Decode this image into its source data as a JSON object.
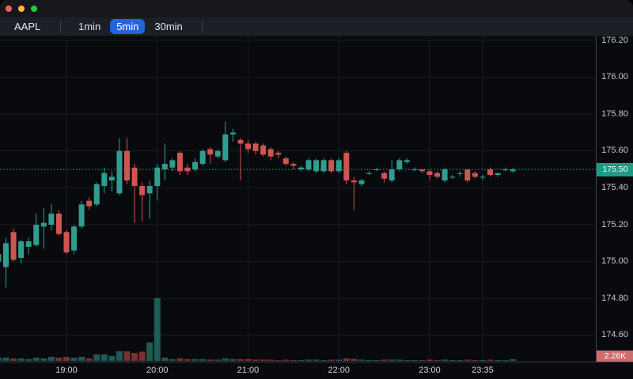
{
  "window": {
    "controls": [
      {
        "name": "close",
        "color": "#ff5f57"
      },
      {
        "name": "minimize",
        "color": "#febc2e"
      },
      {
        "name": "zoom",
        "color": "#28c840"
      }
    ]
  },
  "toolbar": {
    "symbol": "AAPL",
    "timeframes": [
      {
        "label": "1min",
        "active": false
      },
      {
        "label": "5min",
        "active": true
      },
      {
        "label": "30min",
        "active": false
      }
    ],
    "active_button_bg": "#2166d9"
  },
  "colors": {
    "up": "#2f9e8e",
    "down": "#cf5551",
    "grid": "#171b27",
    "background": "#090a0e",
    "price_line": "#2f9e8e",
    "last_price_badge_bg": "#1e9b84",
    "volume_badge_bg": "#ce6d6d"
  },
  "chart": {
    "last_price_label": "175.50",
    "volume_label": "2.26K"
  },
  "chart_data": {
    "type": "candlestick",
    "symbol": "AAPL",
    "interval": "5min",
    "y_ticks": [
      "176.20",
      "176.00",
      "175.80",
      "175.60",
      "175.40",
      "175.20",
      "175.00",
      "174.80",
      "174.60"
    ],
    "x_ticks": [
      "19:00",
      "20:00",
      "21:00",
      "22:00",
      "23:00",
      "23:35"
    ],
    "last_price": 175.5,
    "last_volume_label": "2.26K",
    "volume_unit": "K",
    "candles": [
      {
        "t": "18:15",
        "o": 175.0,
        "h": 175.05,
        "l": 174.96,
        "c": 175.04,
        "v": 4.5
      },
      {
        "t": "18:20",
        "o": 174.97,
        "h": 175.13,
        "l": 174.86,
        "c": 175.1,
        "v": 4.5
      },
      {
        "t": "18:25",
        "o": 175.16,
        "h": 175.18,
        "l": 175.0,
        "c": 175.01,
        "v": 3.4
      },
      {
        "t": "18:30",
        "o": 175.02,
        "h": 175.12,
        "l": 174.99,
        "c": 175.11,
        "v": 3.4
      },
      {
        "t": "18:35",
        "o": 175.08,
        "h": 175.13,
        "l": 175.04,
        "c": 175.11,
        "v": 2.3
      },
      {
        "t": "18:40",
        "o": 175.09,
        "h": 175.26,
        "l": 175.08,
        "c": 175.2,
        "v": 4.5
      },
      {
        "t": "18:45",
        "o": 175.19,
        "h": 175.29,
        "l": 175.07,
        "c": 175.21,
        "v": 3.4
      },
      {
        "t": "18:50",
        "o": 175.2,
        "h": 175.31,
        "l": 175.17,
        "c": 175.26,
        "v": 5.6
      },
      {
        "t": "18:55",
        "o": 175.26,
        "h": 175.28,
        "l": 175.14,
        "c": 175.15,
        "v": 4.5
      },
      {
        "t": "19:00",
        "o": 175.16,
        "h": 175.17,
        "l": 175.04,
        "c": 175.05,
        "v": 5.6
      },
      {
        "t": "19:05",
        "o": 175.06,
        "h": 175.2,
        "l": 175.04,
        "c": 175.19,
        "v": 4.5
      },
      {
        "t": "19:10",
        "o": 175.19,
        "h": 175.33,
        "l": 175.18,
        "c": 175.31,
        "v": 5.6
      },
      {
        "t": "19:15",
        "o": 175.33,
        "h": 175.35,
        "l": 175.28,
        "c": 175.3,
        "v": 3.4
      },
      {
        "t": "19:20",
        "o": 175.31,
        "h": 175.43,
        "l": 175.3,
        "c": 175.42,
        "v": 9
      },
      {
        "t": "19:25",
        "o": 175.41,
        "h": 175.51,
        "l": 175.37,
        "c": 175.48,
        "v": 9
      },
      {
        "t": "19:30",
        "o": 175.44,
        "h": 175.49,
        "l": 175.38,
        "c": 175.46,
        "v": 7
      },
      {
        "t": "19:35",
        "o": 175.37,
        "h": 175.67,
        "l": 175.36,
        "c": 175.6,
        "v": 13.5
      },
      {
        "t": "19:40",
        "o": 175.6,
        "h": 175.67,
        "l": 175.42,
        "c": 175.44,
        "v": 13.5
      },
      {
        "t": "19:45",
        "o": 175.51,
        "h": 175.53,
        "l": 175.21,
        "c": 175.41,
        "v": 11
      },
      {
        "t": "19:50",
        "o": 175.41,
        "h": 175.43,
        "l": 175.22,
        "c": 175.36,
        "v": 13
      },
      {
        "t": "19:55",
        "o": 175.37,
        "h": 175.44,
        "l": 175.23,
        "c": 175.41,
        "v": 26
      },
      {
        "t": "20:00",
        "o": 175.41,
        "h": 175.53,
        "l": 175.33,
        "c": 175.51,
        "v": 89
      },
      {
        "t": "20:05",
        "o": 175.5,
        "h": 175.64,
        "l": 175.44,
        "c": 175.53,
        "v": 4.5
      },
      {
        "t": "20:10",
        "o": 175.51,
        "h": 175.56,
        "l": 175.49,
        "c": 175.55,
        "v": 2.3
      },
      {
        "t": "20:15",
        "o": 175.59,
        "h": 175.6,
        "l": 175.47,
        "c": 175.49,
        "v": 3.4
      },
      {
        "t": "20:20",
        "o": 175.51,
        "h": 175.53,
        "l": 175.47,
        "c": 175.49,
        "v": 2.3
      },
      {
        "t": "20:25",
        "o": 175.5,
        "h": 175.56,
        "l": 175.49,
        "c": 175.54,
        "v": 2.3
      },
      {
        "t": "20:30",
        "o": 175.53,
        "h": 175.61,
        "l": 175.52,
        "c": 175.6,
        "v": 2.3
      },
      {
        "t": "20:35",
        "o": 175.61,
        "h": 175.62,
        "l": 175.53,
        "c": 175.58,
        "v": 1.7
      },
      {
        "t": "20:40",
        "o": 175.57,
        "h": 175.61,
        "l": 175.56,
        "c": 175.6,
        "v": 1.7
      },
      {
        "t": "20:45",
        "o": 175.55,
        "h": 175.76,
        "l": 175.54,
        "c": 175.69,
        "v": 3.4
      },
      {
        "t": "20:50",
        "o": 175.69,
        "h": 175.72,
        "l": 175.65,
        "c": 175.7,
        "v": 2.3
      },
      {
        "t": "20:55",
        "o": 175.66,
        "h": 175.67,
        "l": 175.44,
        "c": 175.64,
        "v": 2.3
      },
      {
        "t": "21:00",
        "o": 175.64,
        "h": 175.66,
        "l": 175.59,
        "c": 175.61,
        "v": 2.3
      },
      {
        "t": "21:05",
        "o": 175.64,
        "h": 175.65,
        "l": 175.58,
        "c": 175.6,
        "v": 1.7
      },
      {
        "t": "21:10",
        "o": 175.63,
        "h": 175.64,
        "l": 175.57,
        "c": 175.58,
        "v": 1.7
      },
      {
        "t": "21:15",
        "o": 175.61,
        "h": 175.62,
        "l": 175.55,
        "c": 175.57,
        "v": 1.7
      },
      {
        "t": "21:20",
        "o": 175.59,
        "h": 175.6,
        "l": 175.56,
        "c": 175.58,
        "v": 1.1
      },
      {
        "t": "21:25",
        "o": 175.56,
        "h": 175.57,
        "l": 175.52,
        "c": 175.53,
        "v": 1.7
      },
      {
        "t": "21:30",
        "o": 175.53,
        "h": 175.54,
        "l": 175.5,
        "c": 175.52,
        "v": 1.1
      },
      {
        "t": "21:35",
        "o": 175.5,
        "h": 175.52,
        "l": 175.49,
        "c": 175.51,
        "v": 1.1
      },
      {
        "t": "21:40",
        "o": 175.5,
        "h": 175.56,
        "l": 175.49,
        "c": 175.55,
        "v": 1.7
      },
      {
        "t": "21:45",
        "o": 175.49,
        "h": 175.56,
        "l": 175.48,
        "c": 175.55,
        "v": 1.7
      },
      {
        "t": "21:50",
        "o": 175.49,
        "h": 175.56,
        "l": 175.48,
        "c": 175.55,
        "v": 1.1
      },
      {
        "t": "21:55",
        "o": 175.55,
        "h": 175.56,
        "l": 175.48,
        "c": 175.49,
        "v": 1.7
      },
      {
        "t": "22:00",
        "o": 175.49,
        "h": 175.56,
        "l": 175.48,
        "c": 175.55,
        "v": 1.7
      },
      {
        "t": "22:05",
        "o": 175.59,
        "h": 175.6,
        "l": 175.42,
        "c": 175.44,
        "v": 3.4
      },
      {
        "t": "22:10",
        "o": 175.44,
        "h": 175.46,
        "l": 175.28,
        "c": 175.43,
        "v": 2.8
      },
      {
        "t": "22:15",
        "o": 175.42,
        "h": 175.45,
        "l": 175.41,
        "c": 175.44,
        "v": 1.7
      },
      {
        "t": "22:20",
        "o": 175.48,
        "h": 175.49,
        "l": 175.47,
        "c": 175.48,
        "v": 1.1
      },
      {
        "t": "22:25",
        "o": 175.5,
        "h": 175.51,
        "l": 175.49,
        "c": 175.5,
        "v": 1.1
      },
      {
        "t": "22:30",
        "o": 175.48,
        "h": 175.49,
        "l": 175.43,
        "c": 175.45,
        "v": 1.7
      },
      {
        "t": "22:35",
        "o": 175.44,
        "h": 175.55,
        "l": 175.43,
        "c": 175.5,
        "v": 1.7
      },
      {
        "t": "22:40",
        "o": 175.5,
        "h": 175.56,
        "l": 175.49,
        "c": 175.55,
        "v": 1.7
      },
      {
        "t": "22:45",
        "o": 175.54,
        "h": 175.56,
        "l": 175.53,
        "c": 175.55,
        "v": 1.1
      },
      {
        "t": "22:50",
        "o": 175.5,
        "h": 175.51,
        "l": 175.49,
        "c": 175.5,
        "v": 1.1
      },
      {
        "t": "22:55",
        "o": 175.5,
        "h": 175.5,
        "l": 175.48,
        "c": 175.49,
        "v": 1.1
      },
      {
        "t": "23:00",
        "o": 175.49,
        "h": 175.5,
        "l": 175.44,
        "c": 175.47,
        "v": 1.7
      },
      {
        "t": "23:05",
        "o": 175.48,
        "h": 175.49,
        "l": 175.45,
        "c": 175.46,
        "v": 1.1
      },
      {
        "t": "23:10",
        "o": 175.44,
        "h": 175.51,
        "l": 175.43,
        "c": 175.5,
        "v": 1.7
      },
      {
        "t": "23:15",
        "o": 175.46,
        "h": 175.47,
        "l": 175.45,
        "c": 175.46,
        "v": 1.1
      },
      {
        "t": "23:20",
        "o": 175.48,
        "h": 175.49,
        "l": 175.46,
        "c": 175.48,
        "v": 1.1
      },
      {
        "t": "23:25",
        "o": 175.5,
        "h": 175.5,
        "l": 175.43,
        "c": 175.44,
        "v": 1.7
      },
      {
        "t": "23:30",
        "o": 175.48,
        "h": 175.49,
        "l": 175.45,
        "c": 175.46,
        "v": 1.1
      },
      {
        "t": "23:35",
        "o": 175.46,
        "h": 175.47,
        "l": 175.44,
        "c": 175.46,
        "v": 1.1
      },
      {
        "t": "23:40",
        "o": 175.5,
        "h": 175.51,
        "l": 175.46,
        "c": 175.47,
        "v": 1.7
      },
      {
        "t": "23:45",
        "o": 175.47,
        "h": 175.48,
        "l": 175.46,
        "c": 175.48,
        "v": 1.1
      },
      {
        "t": "23:50",
        "o": 175.5,
        "h": 175.51,
        "l": 175.49,
        "c": 175.5,
        "v": 1.1
      },
      {
        "t": "23:55",
        "o": 175.49,
        "h": 175.51,
        "l": 175.48,
        "c": 175.5,
        "v": 2.26
      }
    ]
  }
}
